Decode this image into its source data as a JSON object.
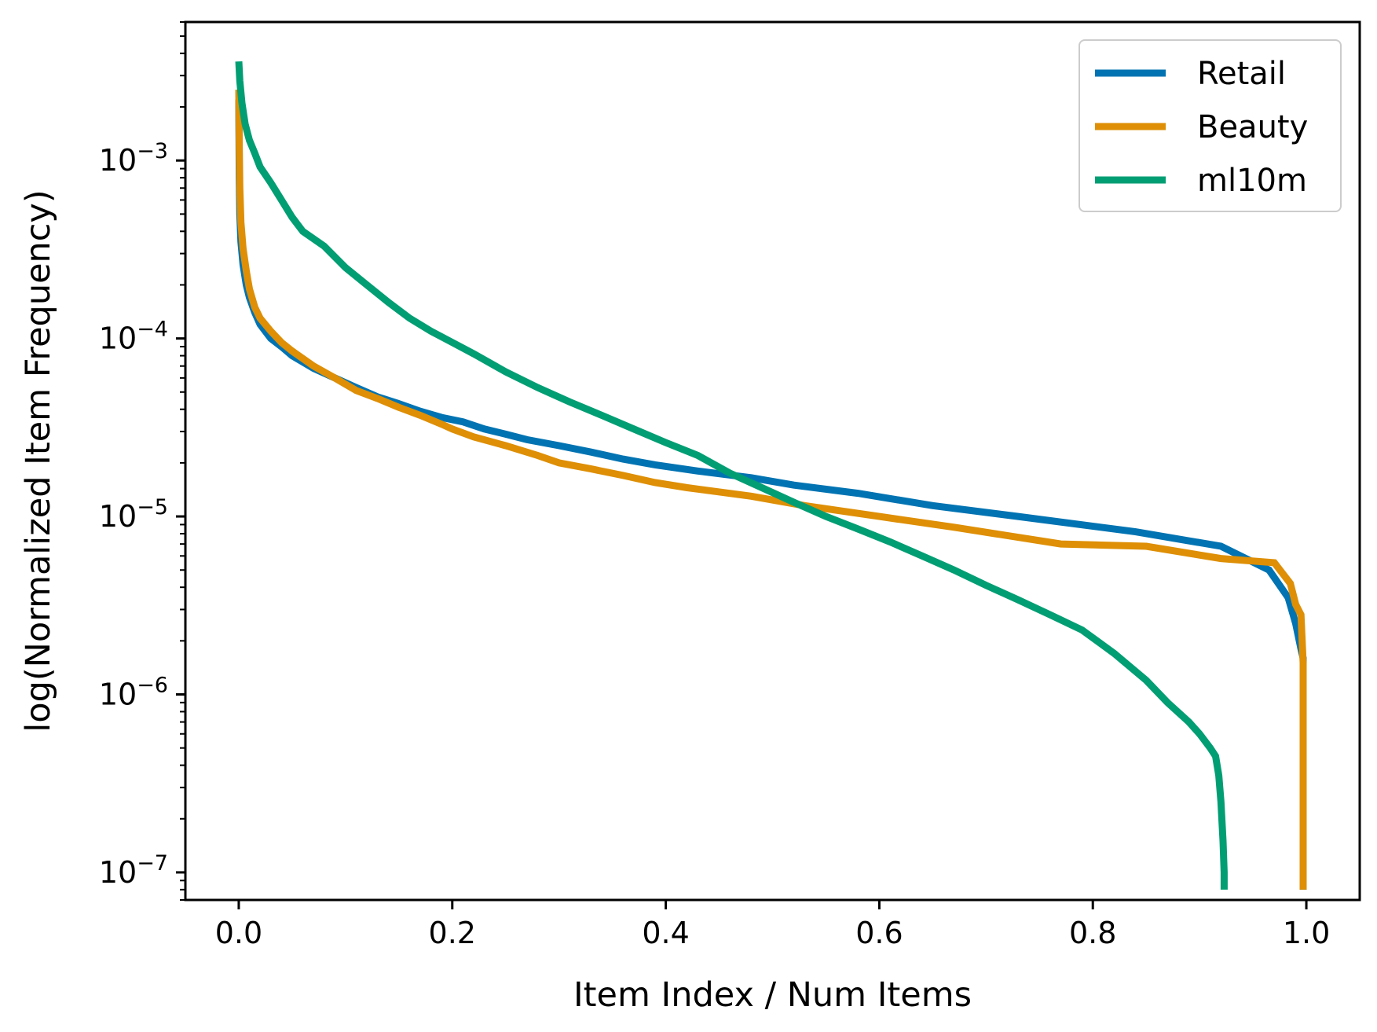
{
  "chart_data": {
    "type": "line",
    "title": "",
    "xlabel": "Item Index / Num Items",
    "ylabel": "log(Normalized Item Frequency)",
    "xlim": [
      -0.05,
      1.05
    ],
    "ylim": [
      7e-08,
      0.006
    ],
    "yscale": "log",
    "grid": false,
    "legend_position": "top-right",
    "x_ticks": [
      0.0,
      0.2,
      0.4,
      0.6,
      0.8,
      1.0
    ],
    "x_tick_labels": [
      "0.0",
      "0.2",
      "0.4",
      "0.6",
      "0.8",
      "1.0"
    ],
    "y_ticks": [
      1e-07,
      1e-06,
      1e-05,
      0.0001,
      0.001
    ],
    "y_tick_labels": [
      {
        "base": "10",
        "exp": "−7"
      },
      {
        "base": "10",
        "exp": "−6"
      },
      {
        "base": "10",
        "exp": "−5"
      },
      {
        "base": "10",
        "exp": "−4"
      },
      {
        "base": "10",
        "exp": "−3"
      }
    ],
    "series": [
      {
        "name": "Retail",
        "color": "#0173b2",
        "x": [
          0.0,
          0.0005,
          0.001,
          0.002,
          0.004,
          0.007,
          0.01,
          0.015,
          0.02,
          0.03,
          0.04,
          0.05,
          0.07,
          0.09,
          0.11,
          0.13,
          0.15,
          0.17,
          0.19,
          0.21,
          0.23,
          0.25,
          0.27,
          0.3,
          0.33,
          0.36,
          0.39,
          0.43,
          0.48,
          0.52,
          0.58,
          0.65,
          0.73,
          0.84,
          0.92,
          0.965,
          0.983,
          0.99,
          0.995,
          0.997,
          0.997
        ],
        "y": [
          0.0022,
          0.0008,
          0.0005,
          0.00035,
          0.00026,
          0.0002,
          0.00017,
          0.00014,
          0.00012,
          0.0001,
          9e-05,
          8e-05,
          6.8e-05,
          6e-05,
          5.3e-05,
          4.7e-05,
          4.3e-05,
          3.9e-05,
          3.6e-05,
          3.4e-05,
          3.1e-05,
          2.9e-05,
          2.7e-05,
          2.5e-05,
          2.3e-05,
          2.1e-05,
          1.95e-05,
          1.8e-05,
          1.65e-05,
          1.5e-05,
          1.35e-05,
          1.15e-05,
          1e-05,
          8.2e-06,
          6.8e-06,
          5e-06,
          3.5e-06,
          2.5e-06,
          1.8e-06,
          1.6e-06,
          8e-08
        ]
      },
      {
        "name": "Beauty",
        "color": "#de8f05",
        "x": [
          0.0,
          0.0005,
          0.001,
          0.002,
          0.004,
          0.007,
          0.01,
          0.015,
          0.02,
          0.03,
          0.04,
          0.05,
          0.07,
          0.09,
          0.11,
          0.13,
          0.15,
          0.17,
          0.19,
          0.2,
          0.22,
          0.25,
          0.28,
          0.3,
          0.33,
          0.36,
          0.39,
          0.42,
          0.48,
          0.53,
          0.6,
          0.67,
          0.77,
          0.85,
          0.92,
          0.97,
          0.985,
          0.99,
          0.995,
          0.997,
          0.997
        ],
        "y": [
          0.0025,
          0.0012,
          0.0007,
          0.00045,
          0.00032,
          0.00024,
          0.00019,
          0.00015,
          0.00013,
          0.00011,
          9.5e-05,
          8.5e-05,
          7e-05,
          6e-05,
          5.1e-05,
          4.6e-05,
          4.1e-05,
          3.7e-05,
          3.3e-05,
          3.1e-05,
          2.8e-05,
          2.5e-05,
          2.2e-05,
          2e-05,
          1.85e-05,
          1.7e-05,
          1.55e-05,
          1.45e-05,
          1.3e-05,
          1.15e-05,
          1e-05,
          8.7e-06,
          7e-06,
          6.8e-06,
          5.8e-06,
          5.5e-06,
          4.2e-06,
          3.2e-06,
          2.8e-06,
          1.5e-06,
          8e-08
        ]
      },
      {
        "name": "ml10m",
        "color": "#029e73",
        "x": [
          0.0,
          0.001,
          0.003,
          0.006,
          0.01,
          0.015,
          0.02,
          0.03,
          0.04,
          0.05,
          0.06,
          0.08,
          0.1,
          0.12,
          0.14,
          0.16,
          0.18,
          0.2,
          0.22,
          0.25,
          0.28,
          0.31,
          0.34,
          0.37,
          0.4,
          0.43,
          0.46,
          0.49,
          0.52,
          0.55,
          0.58,
          0.61,
          0.64,
          0.67,
          0.7,
          0.73,
          0.76,
          0.79,
          0.82,
          0.85,
          0.87,
          0.89,
          0.9,
          0.91,
          0.915,
          0.918,
          0.92,
          0.922,
          0.923,
          0.923
        ],
        "y": [
          0.0036,
          0.0028,
          0.0021,
          0.0016,
          0.0013,
          0.0011,
          0.00092,
          0.00075,
          0.0006,
          0.00048,
          0.0004,
          0.00033,
          0.00025,
          0.0002,
          0.00016,
          0.00013,
          0.00011,
          9.5e-05,
          8.2e-05,
          6.5e-05,
          5.3e-05,
          4.4e-05,
          3.7e-05,
          3.1e-05,
          2.6e-05,
          2.2e-05,
          1.75e-05,
          1.45e-05,
          1.2e-05,
          1e-05,
          8.5e-06,
          7.2e-06,
          6e-06,
          5e-06,
          4.1e-06,
          3.4e-06,
          2.8e-06,
          2.3e-06,
          1.7e-06,
          1.2e-06,
          9e-07,
          7e-07,
          6e-07,
          5e-07,
          4.5e-07,
          3.5e-07,
          2.5e-07,
          1.5e-07,
          1e-07,
          8e-08
        ]
      }
    ]
  }
}
